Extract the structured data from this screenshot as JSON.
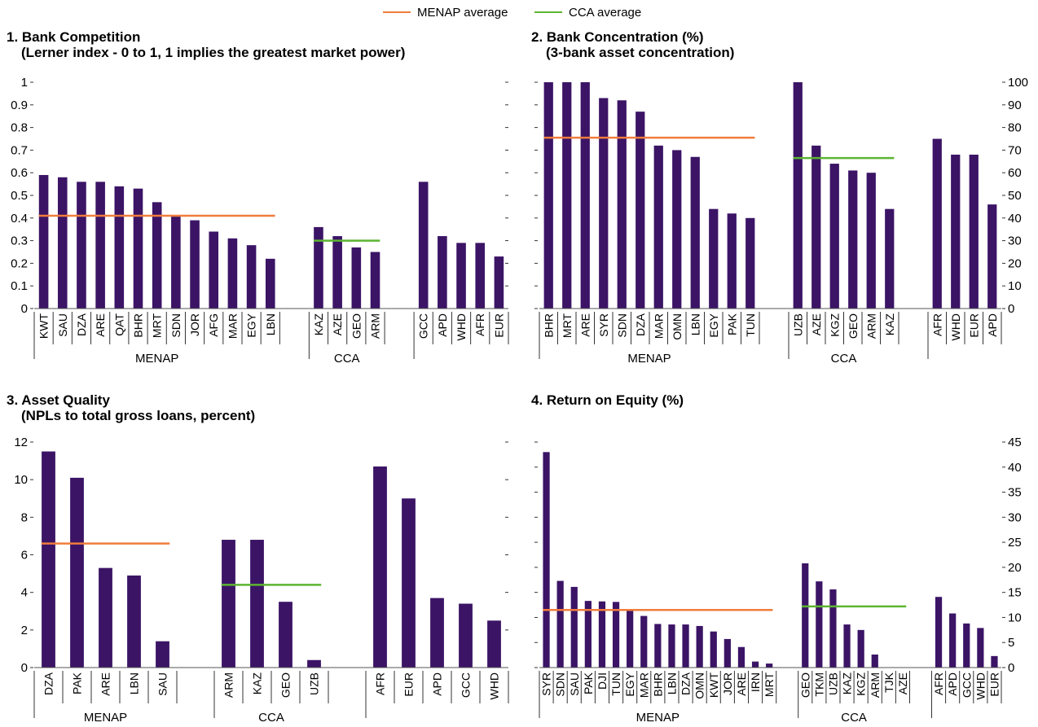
{
  "legend": {
    "items": [
      {
        "label": "MENAP average",
        "color": "#f07d3c"
      },
      {
        "label": "CCA average",
        "color": "#5cb531"
      }
    ]
  },
  "colors": {
    "bar": "#3b1466",
    "menap_avg": "#f07d3c",
    "cca_avg": "#5cb531"
  },
  "panels": [
    {
      "title": "1. Bank Competition",
      "subtitle": "(Lerner index - 0 to 1, 1 implies the greatest market power)"
    },
    {
      "title": "2. Bank Concentration (%)",
      "subtitle": "(3-bank asset concentration)"
    },
    {
      "title": "3. Asset Quality",
      "subtitle": "(NPLs to total gross loans, percent)"
    },
    {
      "title": "4. Return on Equity (%)",
      "subtitle": ""
    }
  ],
  "chart_data": [
    {
      "type": "bar",
      "title": "1. Bank Competition",
      "subtitle": "(Lerner index - 0 to 1, 1 implies the greatest market power)",
      "y_axis_side": "left",
      "ylim": [
        0,
        1
      ],
      "yticks": [
        0,
        0.1,
        0.2,
        0.3,
        0.4,
        0.5,
        0.6,
        0.7,
        0.8,
        0.9,
        1
      ],
      "ytick_labels": [
        "0",
        "0.1",
        "0.2",
        "0.3",
        "0.4",
        "0.5",
        "0.6",
        "0.7",
        "0.8",
        "0.9",
        "1"
      ],
      "groups": [
        {
          "name": "MENAP",
          "categories": [
            "KWT",
            "SAU",
            "DZA",
            "ARE",
            "QAT",
            "BHR",
            "MRT",
            "SDN",
            "JOR",
            "AFG",
            "MAR",
            "EGY",
            "LBN"
          ],
          "values": [
            0.59,
            0.58,
            0.56,
            0.56,
            0.54,
            0.53,
            0.47,
            0.41,
            0.39,
            0.34,
            0.31,
            0.28,
            0.22
          ]
        },
        {
          "name": "CCA",
          "categories": [
            "KAZ",
            "AZE",
            "GEO",
            "ARM"
          ],
          "values": [
            0.36,
            0.32,
            0.27,
            0.25
          ]
        },
        {
          "name": "",
          "categories": [
            "GCC",
            "APD",
            "WHD",
            "AFR",
            "EUR"
          ],
          "values": [
            0.56,
            0.32,
            0.29,
            0.29,
            0.23
          ]
        }
      ],
      "averages": [
        {
          "series": "MENAP average",
          "group": "MENAP",
          "value": 0.41
        },
        {
          "series": "CCA average",
          "group": "CCA",
          "value": 0.3
        }
      ]
    },
    {
      "type": "bar",
      "title": "2. Bank Concentration (%)",
      "subtitle": "(3-bank asset concentration)",
      "y_axis_side": "right",
      "ylim": [
        0,
        100
      ],
      "yticks": [
        0,
        10,
        20,
        30,
        40,
        50,
        60,
        70,
        80,
        90,
        100
      ],
      "ytick_labels": [
        "0",
        "10",
        "20",
        "30",
        "40",
        "50",
        "60",
        "70",
        "80",
        "90",
        "100"
      ],
      "groups": [
        {
          "name": "MENAP",
          "categories": [
            "BHR",
            "MRT",
            "ARE",
            "SYR",
            "SDN",
            "DZA",
            "MAR",
            "OMN",
            "LBN",
            "EGY",
            "PAK",
            "TUN"
          ],
          "values": [
            100,
            100,
            100,
            93,
            92,
            87,
            72,
            70,
            67,
            44,
            42,
            40
          ]
        },
        {
          "name": "CCA",
          "categories": [
            "UZB",
            "AZE",
            "KGZ",
            "GEO",
            "ARM",
            "KAZ"
          ],
          "values": [
            100,
            72,
            64,
            61,
            60,
            44
          ]
        },
        {
          "name": "",
          "categories": [
            "AFR",
            "WHD",
            "EUR",
            "APD"
          ],
          "values": [
            75,
            68,
            68,
            46
          ]
        }
      ],
      "averages": [
        {
          "series": "MENAP average",
          "group": "MENAP",
          "value": 75.5
        },
        {
          "series": "CCA average",
          "group": "CCA",
          "value": 66.5
        }
      ]
    },
    {
      "type": "bar",
      "title": "3. Asset Quality",
      "subtitle": "(NPLs to total gross loans, percent)",
      "y_axis_side": "left",
      "ylim": [
        0,
        12
      ],
      "yticks": [
        0,
        2,
        4,
        6,
        8,
        10,
        12
      ],
      "ytick_labels": [
        "0",
        "2",
        "4",
        "6",
        "8",
        "10",
        "12"
      ],
      "groups": [
        {
          "name": "MENAP",
          "categories": [
            "DZA",
            "PAK",
            "ARE",
            "LBN",
            "SAU"
          ],
          "values": [
            11.5,
            10.1,
            5.3,
            4.9,
            1.4
          ]
        },
        {
          "name": "CCA",
          "categories": [
            "ARM",
            "KAZ",
            "GEO",
            "UZB"
          ],
          "values": [
            6.8,
            6.8,
            3.5,
            0.4
          ]
        },
        {
          "name": "",
          "categories": [
            "AFR",
            "EUR",
            "APD",
            "GCC",
            "WHD"
          ],
          "values": [
            10.7,
            9.0,
            3.7,
            3.4,
            2.5
          ]
        }
      ],
      "averages": [
        {
          "series": "MENAP average",
          "group": "MENAP",
          "value": 6.6
        },
        {
          "series": "CCA average",
          "group": "CCA",
          "value": 4.4
        }
      ]
    },
    {
      "type": "bar",
      "title": "4. Return on Equity (%)",
      "subtitle": "",
      "y_axis_side": "right",
      "ylim": [
        0,
        45
      ],
      "yticks": [
        0,
        5,
        10,
        15,
        20,
        25,
        30,
        35,
        40,
        45
      ],
      "ytick_labels": [
        "0",
        "5",
        "10",
        "15",
        "20",
        "25",
        "30",
        "35",
        "40",
        "45"
      ],
      "groups": [
        {
          "name": "MENAP",
          "categories": [
            "SYR",
            "SDN",
            "SAU",
            "PAK",
            "DJI",
            "TUN",
            "EGY",
            "MAR",
            "BHR",
            "LBN",
            "DZA",
            "OMN",
            "KWT",
            "JOR",
            "ARE",
            "IRN",
            "MRT"
          ],
          "values": [
            43,
            17.3,
            16.1,
            13.3,
            13.2,
            13.1,
            11.6,
            10.3,
            8.7,
            8.6,
            8.6,
            8.3,
            7.2,
            5.7,
            4.1,
            1.2,
            0.8
          ]
        },
        {
          "name": "CCA",
          "categories": [
            "GEO",
            "TKM",
            "UZB",
            "KAZ",
            "KGZ",
            "ARM",
            "TJK",
            "AZE"
          ],
          "values": [
            20.8,
            17.2,
            15.6,
            8.6,
            7.5,
            2.6,
            0,
            0
          ]
        },
        {
          "name": "",
          "categories": [
            "AFR",
            "APD",
            "GCC",
            "WHD",
            "EUR"
          ],
          "values": [
            14.1,
            10.8,
            8.8,
            7.9,
            2.3
          ]
        }
      ],
      "averages": [
        {
          "series": "MENAP average",
          "group": "MENAP",
          "value": 11.5
        },
        {
          "series": "CCA average",
          "group": "CCA",
          "value": 12.2
        }
      ]
    }
  ]
}
